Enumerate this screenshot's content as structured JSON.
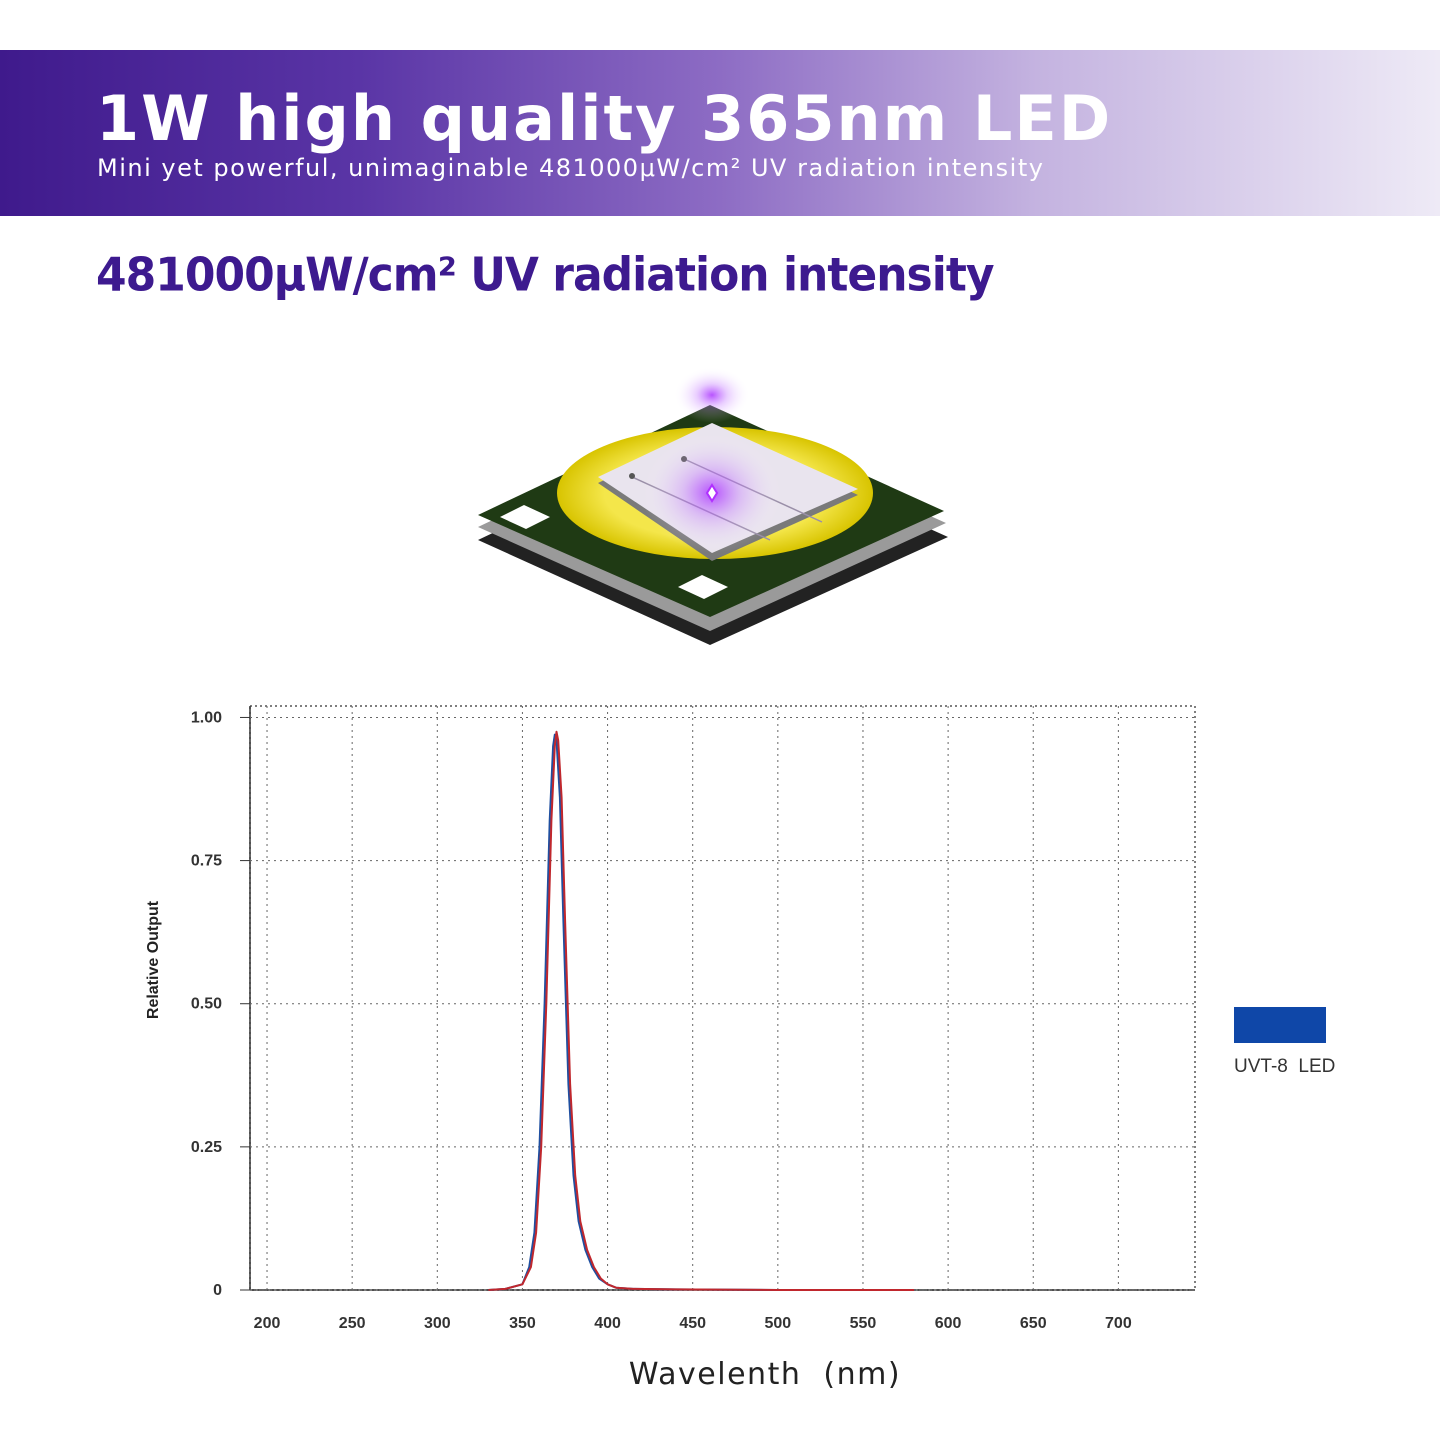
{
  "banner": {
    "title": "1W high quality 365nm LED",
    "subtitle": "Mini yet powerful, unimaginable 481000μW/cm² UV radiation intensity"
  },
  "headline": "481000μW/cm² UV radiation intensity",
  "chart_data": {
    "type": "line",
    "xlabel": "Wavelenth  (nm)",
    "ylabel": "Relative Output",
    "xlim": [
      190,
      745
    ],
    "ylim": [
      0,
      1.02
    ],
    "x_ticks": [
      200,
      250,
      300,
      350,
      400,
      450,
      500,
      550,
      600,
      650,
      700
    ],
    "y_ticks": [
      {
        "value": 0,
        "label": "0"
      },
      {
        "value": 0.25,
        "label": "0.25"
      },
      {
        "value": 0.5,
        "label": "0.50"
      },
      {
        "value": 0.75,
        "label": "0.75"
      },
      {
        "value": 1.0,
        "label": "1.00"
      }
    ],
    "grid": true,
    "legend": {
      "label": "UVT-8  LED",
      "color": "#0f47a8",
      "placement": "right"
    },
    "series": [
      {
        "name": "UVT-8  LED",
        "color": "#c0272d",
        "x": [
          330,
          340,
          350,
          355,
          358,
          361,
          364,
          367,
          369,
          370,
          371,
          373,
          375,
          378,
          381,
          384,
          388,
          392,
          396,
          400,
          405,
          415,
          440,
          500,
          580
        ],
        "y": [
          0,
          0.002,
          0.01,
          0.04,
          0.1,
          0.25,
          0.5,
          0.82,
          0.95,
          0.975,
          0.96,
          0.86,
          0.65,
          0.36,
          0.2,
          0.12,
          0.07,
          0.04,
          0.02,
          0.01,
          0.004,
          0.002,
          0.001,
          0,
          0
        ]
      },
      {
        "color": "#1f4fa0",
        "x": [
          330,
          340,
          350,
          354,
          357,
          360,
          363,
          366,
          368,
          369,
          370,
          372,
          374,
          377,
          380,
          383,
          387,
          391,
          395,
          400,
          405,
          415,
          440,
          500,
          580
        ],
        "y": [
          0,
          0.002,
          0.01,
          0.04,
          0.1,
          0.25,
          0.5,
          0.82,
          0.95,
          0.97,
          0.96,
          0.86,
          0.65,
          0.36,
          0.2,
          0.12,
          0.07,
          0.04,
          0.02,
          0.01,
          0.004,
          0.002,
          0.001,
          0,
          0
        ]
      }
    ]
  }
}
